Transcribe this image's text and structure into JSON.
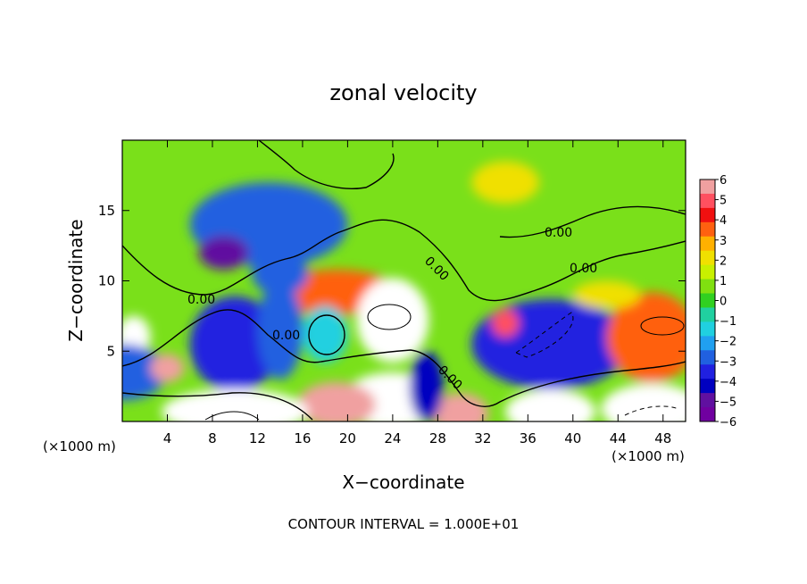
{
  "chart_data": {
    "type": "heatmap",
    "title": "zonal velocity",
    "xlabel": "X−coordinate",
    "ylabel": "Z−coordinate",
    "x_unit_left": "(×1000 m)",
    "x_unit_right": "(×1000 m)",
    "footer": "CONTOUR INTERVAL = 1.000E+01",
    "x_range": [
      0,
      50
    ],
    "y_range": [
      0,
      20
    ],
    "x_ticks": [
      4,
      8,
      12,
      16,
      20,
      24,
      28,
      32,
      36,
      40,
      44,
      48
    ],
    "y_ticks": [
      5,
      10,
      15
    ],
    "colorbar": {
      "min": -6,
      "max": 6,
      "tick_labels": [
        "6",
        "5",
        "4",
        "3",
        "2",
        "1",
        "0",
        "−1",
        "−2",
        "−3",
        "−4",
        "−5",
        "−6"
      ],
      "colors": [
        "#f0a0a0",
        "#ff5060",
        "#f01010",
        "#ff6010",
        "#ffb000",
        "#f0e000",
        "#c8f000",
        "#80e010",
        "#30d020",
        "#20d0a0",
        "#20d0e0",
        "#20a0f0",
        "#2060e0",
        "#2020e0",
        "#0000c0",
        "#6010a0",
        "#7000a0"
      ]
    },
    "contour_labels": [
      "0.00",
      "0.00",
      "0.00",
      "0.00",
      "0.00",
      "0.00"
    ],
    "blobs": [
      {
        "x": 19,
        "y": 9.2,
        "rx": 5.5,
        "ry": 1.6,
        "v": 4
      },
      {
        "x": 24,
        "y": 7.2,
        "rx": 3.2,
        "ry": 3.0,
        "v": 6.5
      },
      {
        "x": 18,
        "y": 6.2,
        "rx": 2.0,
        "ry": 2.0,
        "v": -1.2
      },
      {
        "x": 10,
        "y": 6.2,
        "rx": 2.4,
        "ry": 2.2,
        "v": 6.5
      },
      {
        "x": 10,
        "y": 5.5,
        "rx": 4.0,
        "ry": 3.4,
        "v": -4
      },
      {
        "x": 14,
        "y": 6.5,
        "rx": 2.0,
        "ry": 3.5,
        "v": -3
      },
      {
        "x": 13,
        "y": 14,
        "rx": 7.0,
        "ry": 3.0,
        "v": -3.2
      },
      {
        "x": 9,
        "y": 12,
        "rx": 2.2,
        "ry": 1.2,
        "v": -5.5
      },
      {
        "x": 14,
        "y": 10.5,
        "rx": 2.5,
        "ry": 1.5,
        "v": -3
      },
      {
        "x": 38,
        "y": 5.5,
        "rx": 4.5,
        "ry": 2.0,
        "v": 6.5
      },
      {
        "x": 38,
        "y": 5.5,
        "rx": 7.0,
        "ry": 3.2,
        "v": -4
      },
      {
        "x": 48,
        "y": 6.5,
        "rx": 2.5,
        "ry": 2.0,
        "v": 6.5
      },
      {
        "x": 47,
        "y": 6.0,
        "rx": 4.0,
        "ry": 3.2,
        "v": 4
      },
      {
        "x": 1.0,
        "y": 6.0,
        "rx": 1.5,
        "ry": 1.5,
        "v": 6.5
      },
      {
        "x": 0,
        "y": 3.5,
        "rx": 4,
        "ry": 2.0,
        "v": -3
      },
      {
        "x": 4,
        "y": 3.8,
        "rx": 1.5,
        "ry": 1.0,
        "v": 6
      },
      {
        "x": 24,
        "y": 1.5,
        "rx": 4.5,
        "ry": 2.0,
        "v": 6.5
      },
      {
        "x": 19,
        "y": 1.2,
        "rx": 3.5,
        "ry": 1.6,
        "v": 6
      },
      {
        "x": 10,
        "y": 0.7,
        "rx": 6.5,
        "ry": 1.6,
        "v": 6.5
      },
      {
        "x": 30,
        "y": 0.6,
        "rx": 2.5,
        "ry": 1.4,
        "v": 6
      },
      {
        "x": 38,
        "y": 0.7,
        "rx": 4.0,
        "ry": 1.6,
        "v": 6.5
      },
      {
        "x": 47,
        "y": 0.9,
        "rx": 4.5,
        "ry": 1.8,
        "v": 6.5
      },
      {
        "x": 27,
        "y": 2.5,
        "rx": 1.5,
        "ry": 2.5,
        "v": -4.5
      },
      {
        "x": 34,
        "y": 7.0,
        "rx": 1.2,
        "ry": 1.0,
        "v": 5
      },
      {
        "x": 34,
        "y": 17,
        "rx": 3.0,
        "ry": 1.5,
        "v": 2.5
      },
      {
        "x": 43,
        "y": 9.0,
        "rx": 3.0,
        "ry": 1.0,
        "v": 2.5
      }
    ]
  }
}
